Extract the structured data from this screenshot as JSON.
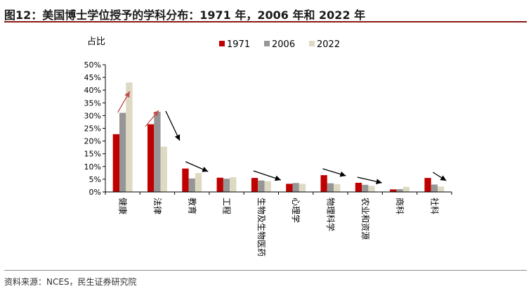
{
  "title": "图12：美国博士学位授予的学科分布：1971 年，2006 年和 2022 年",
  "source": "资料来源：NCES，民生证券研究院",
  "chart_data": {
    "type": "bar",
    "ylabel": "占比",
    "ylim": [
      0,
      50
    ],
    "y_ticks": [
      "0%",
      "5%",
      "10%",
      "15%",
      "20%",
      "25%",
      "30%",
      "35%",
      "40%",
      "45%",
      "50%"
    ],
    "categories": [
      "健康",
      "法律",
      "教育",
      "工程",
      "生物及生物医药",
      "心理学",
      "物理科学",
      "农业和资源",
      "商科",
      "社科"
    ],
    "series": [
      {
        "name": "1971",
        "color": "#c00000",
        "values": [
          22.7,
          26.6,
          9.2,
          5.6,
          5.5,
          3.2,
          6.6,
          3.6,
          1.0,
          5.5
        ]
      },
      {
        "name": "2006",
        "color": "#969696",
        "values": [
          31.1,
          31.5,
          5.3,
          5.2,
          4.5,
          3.5,
          3.4,
          2.8,
          1.1,
          2.9
        ]
      },
      {
        "name": "2022",
        "color": "#ddd9c3",
        "values": [
          43.0,
          17.8,
          7.4,
          5.8,
          4.2,
          3.2,
          3.1,
          2.4,
          2.0,
          2.1
        ]
      }
    ],
    "legend_position": "top",
    "annotations": {
      "up_arrow_color": "#c0504d",
      "down_arrow_color": "#000000",
      "rising_categories": [
        "健康",
        "法律"
      ],
      "falling_categories": [
        "法律",
        "教育",
        "生物及生物医药",
        "物理科学",
        "农业和资源",
        "社科"
      ]
    }
  }
}
